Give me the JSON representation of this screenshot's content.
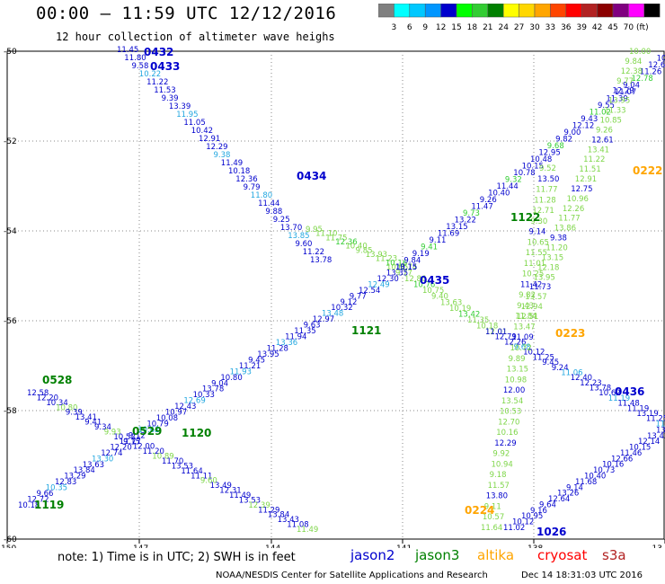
{
  "title": "00:00 – 11:59 UTC 12/12/2016",
  "subtitle": "12 hour collection of altimeter wave heighs",
  "legend": {
    "colors": [
      "#808080",
      "#00ffff",
      "#00c8ff",
      "#0096ff",
      "#0000cd",
      "#00ff00",
      "#32cd32",
      "#008000",
      "#ffff00",
      "#ffd700",
      "#ffa500",
      "#ff4500",
      "#ff0000",
      "#b22222",
      "#8b0000",
      "#800080",
      "#ff00ff",
      "#000000"
    ],
    "labels": [
      "3",
      "6",
      "9",
      "12",
      "15",
      "18",
      "21",
      "24",
      "27",
      "30",
      "33",
      "36",
      "39",
      "42",
      "45",
      "70",
      "(ft)"
    ]
  },
  "map": {
    "lon_ticks": [
      "-150",
      "-147",
      "-144",
      "-141",
      "-138",
      "-13"
    ],
    "lat_ticks": [
      "-50",
      "-52",
      "-54",
      "-56",
      "-58",
      "-60"
    ]
  },
  "passes": [
    {
      "satellite": "jason2",
      "label": "0432",
      "color": "#0000cd"
    },
    {
      "satellite": "jason2",
      "label": "0433",
      "color": "#0000cd"
    },
    {
      "satellite": "jason2",
      "label": "0434",
      "color": "#0000cd"
    },
    {
      "satellite": "jason2",
      "label": "0435",
      "color": "#0000cd"
    },
    {
      "satellite": "jason3",
      "label": "1122",
      "color": "#008000"
    },
    {
      "satellite": "jason3",
      "label": "1121",
      "color": "#008000"
    },
    {
      "satellite": "jason3",
      "label": "1120",
      "color": "#008000"
    },
    {
      "satellite": "jason3",
      "label": "1119",
      "color": "#008000"
    },
    {
      "satellite": "jason3",
      "label": "0528",
      "color": "#008000"
    },
    {
      "satellite": "jason3",
      "label": "0529",
      "color": "#008000"
    },
    {
      "satellite": "altika",
      "label": "0222",
      "color": "#ffa500"
    },
    {
      "satellite": "altika",
      "label": "0223",
      "color": "#ffa500"
    },
    {
      "satellite": "altika",
      "label": "0224",
      "color": "#ffa500"
    },
    {
      "satellite": "jason2",
      "label": "0436",
      "color": "#0000cd"
    },
    {
      "satellite": "jason2",
      "label": "1026",
      "color": "#0000cd"
    }
  ],
  "footer": {
    "note": "note: 1) Time is in UTC; 2) SWH is in feet",
    "satellites": [
      {
        "name": "jason2",
        "color": "#0000cd"
      },
      {
        "name": "jason3",
        "color": "#008000"
      },
      {
        "name": "altika",
        "color": "#ffa500"
      },
      {
        "name": "cryosat",
        "color": "#ff0000"
      },
      {
        "name": "s3a",
        "color": "#b22222"
      }
    ],
    "credit": "NOAA/NESDIS Center for Satellite Applications and Research",
    "stamp": "Dec 14 18:31:03 UTC 2016"
  }
}
